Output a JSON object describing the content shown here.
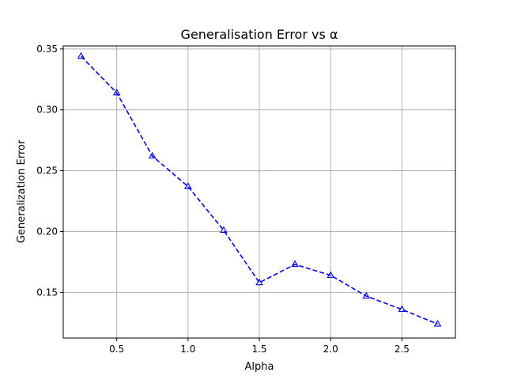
{
  "chart_data": {
    "type": "line",
    "title": "Generalisation Error vs α",
    "xlabel": "Alpha",
    "ylabel": "Generalization Error",
    "xlim": [
      0.125,
      2.875
    ],
    "ylim": [
      0.1125,
      0.3525
    ],
    "grid": true,
    "x_ticks": [
      "0.5",
      "1.0",
      "1.5",
      "2.0",
      "2.5"
    ],
    "y_ticks": [
      "0.15",
      "0.20",
      "0.25",
      "0.30",
      "0.35"
    ],
    "series": [
      {
        "line_color": "#0000ee",
        "line_style": "dashed",
        "marker": "triangle-up",
        "x": [
          0.25,
          0.5,
          0.75,
          1.0,
          1.25,
          1.5,
          1.75,
          2.0,
          2.25,
          2.5,
          2.75
        ],
        "y": [
          0.344,
          0.314,
          0.262,
          0.237,
          0.201,
          0.158,
          0.173,
          0.164,
          0.147,
          0.136,
          0.124
        ]
      }
    ]
  }
}
